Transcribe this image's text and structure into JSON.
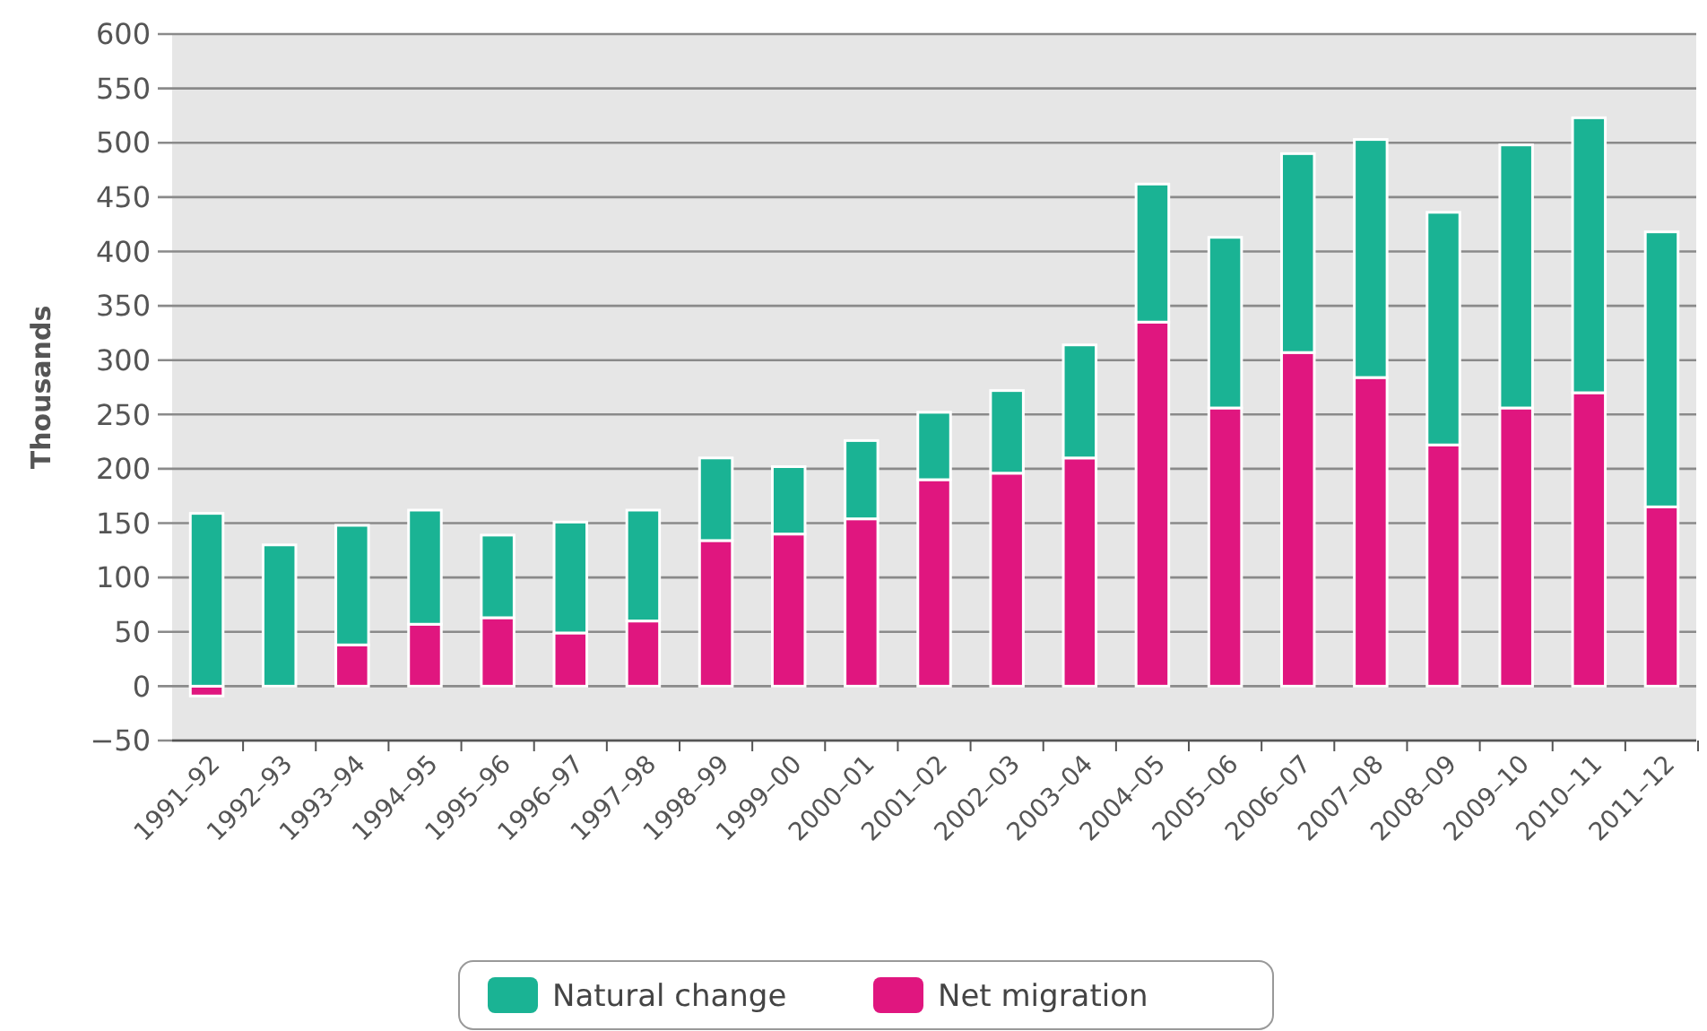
{
  "chart_data": {
    "type": "bar",
    "ylabel": "Thousands",
    "stacked": true,
    "categories": [
      "1991–92",
      "1992–93",
      "1993–94",
      "1994–95",
      "1995–96",
      "1996–97",
      "1997–98",
      "1998–99",
      "1999–00",
      "2000–01",
      "2001–02",
      "2002–03",
      "2003–04",
      "2004–05",
      "2005–06",
      "2006–07",
      "2007–08",
      "2008–09",
      "2009–10",
      "2010–11",
      "2011–12"
    ],
    "series": [
      {
        "name": "Net migration",
        "color": "#e0167f",
        "values": [
          -9,
          0,
          38,
          57,
          63,
          49,
          60,
          134,
          140,
          154,
          190,
          196,
          210,
          335,
          256,
          307,
          284,
          222,
          256,
          270,
          165
        ]
      },
      {
        "name": "Natural change",
        "color": "#1ab394",
        "values": [
          159,
          130,
          110,
          105,
          76,
          102,
          102,
          76,
          62,
          72,
          62,
          76,
          104,
          127,
          157,
          183,
          219,
          214,
          242,
          253,
          253
        ]
      }
    ],
    "ylim": [
      -50,
      600
    ],
    "yticks": [
      {
        "value": -50,
        "label": "−50"
      },
      0,
      50,
      100,
      150,
      200,
      250,
      300,
      350,
      400,
      450,
      500,
      550,
      600
    ],
    "grid": "y",
    "legend": "bottom"
  }
}
